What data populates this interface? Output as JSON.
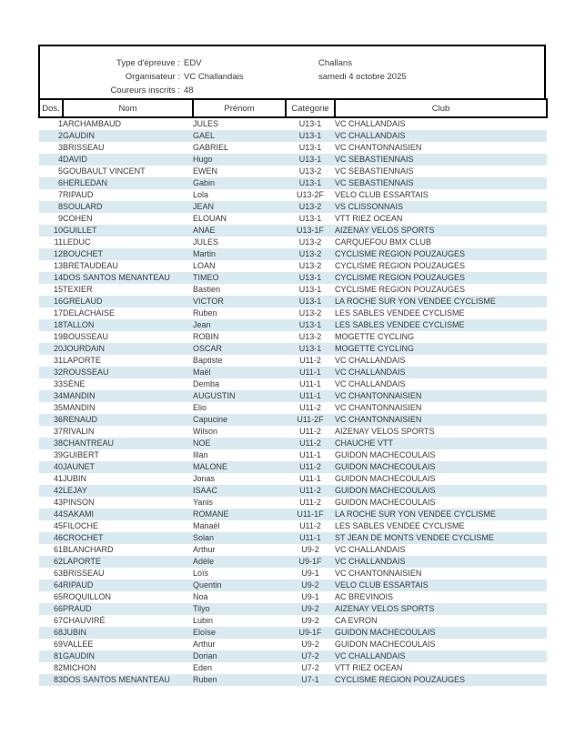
{
  "header": {
    "type_label": "Type d'épreuve :",
    "type_value": "EDV",
    "organizer_label": "Organisateur :",
    "organizer_value": "VC Challandais",
    "entries_label": "Coureurs inscrits :",
    "entries_value": "48",
    "location": "Challans",
    "date": "samedi 4 octobre 2025"
  },
  "table": {
    "columns": [
      "Dos.",
      "Nom",
      "Prénom",
      "Catégorie",
      "Club"
    ],
    "rows": [
      [
        "1",
        "ARCHAMBAUD",
        "JULES",
        "U13-1",
        "VC CHALLANDAIS"
      ],
      [
        "2",
        "GAUDIN",
        "GAEL",
        "U13-1",
        "VC CHALLANDAIS"
      ],
      [
        "3",
        "BRISSEAU",
        "GABRIEL",
        "U13-1",
        "VC CHANTONNAISIEN"
      ],
      [
        "4",
        "DAVID",
        "Hugo",
        "U13-1",
        "VC SEBASTIENNAIS"
      ],
      [
        "5",
        "GOUBAULT VINCENT",
        "EWEN",
        "U13-2",
        "VC SEBASTIENNAIS"
      ],
      [
        "6",
        "HERLEDAN",
        "Gabin",
        "U13-1",
        "VC SEBASTIENNAIS"
      ],
      [
        "7",
        "RIPAUD",
        "Lola",
        "U13-2F",
        "VELO CLUB ESSARTAIS"
      ],
      [
        "8",
        "SOULARD",
        "JEAN",
        "U13-2",
        "VS CLISSONNAIS"
      ],
      [
        "9",
        "COHEN",
        "ELOUAN",
        "U13-1",
        "VTT RIEZ OCEAN"
      ],
      [
        "10",
        "GUILLET",
        "ANAE",
        "U13-1F",
        "AIZENAY VELOS SPORTS"
      ],
      [
        "11",
        "LEDUC",
        "JULES",
        "U13-2",
        "CARQUEFOU BMX CLUB"
      ],
      [
        "12",
        "BOUCHET",
        "Martin",
        "U13-2",
        "CYCLISME REGION POUZAUGES"
      ],
      [
        "13",
        "BRETAUDEAU",
        "LOAN",
        "U13-2",
        "CYCLISME REGION POUZAUGES"
      ],
      [
        "14",
        "DOS SANTOS MENANTEAU",
        "TIMEO",
        "U13-1",
        "CYCLISME REGION POUZAUGES"
      ],
      [
        "15",
        "TEXIER",
        "Bastien",
        "U13-1",
        "CYCLISME REGION POUZAUGES"
      ],
      [
        "16",
        "GRELAUD",
        "VICTOR",
        "U13-1",
        "LA ROCHE SUR YON VENDEE CYCLISME"
      ],
      [
        "17",
        "DELACHAISE",
        "Ruben",
        "U13-2",
        "LES SABLES VENDEE CYCLISME"
      ],
      [
        "18",
        "TALLON",
        "Jean",
        "U13-1",
        "LES SABLES VENDEE CYCLISME"
      ],
      [
        "19",
        "BOUSSEAU",
        "ROBIN",
        "U13-2",
        "MOGETTE CYCLING"
      ],
      [
        "20",
        "JOURDAIN",
        "OSCAR",
        "U13-1",
        "MOGETTE CYCLING"
      ],
      [
        "31",
        "LAPORTE",
        "Baptiste",
        "U11-2",
        "VC CHALLANDAIS"
      ],
      [
        "32",
        "ROUSSEAU",
        "Maël",
        "U11-1",
        "VC CHALLANDAIS"
      ],
      [
        "33",
        "SÈNE",
        "Demba",
        "U11-1",
        "VC CHALLANDAIS"
      ],
      [
        "34",
        "MANDIN",
        "AUGUSTIN",
        "U11-1",
        "VC CHANTONNAISIEN"
      ],
      [
        "35",
        "MANDIN",
        "Elio",
        "U11-2",
        "VC CHANTONNAISIEN"
      ],
      [
        "36",
        "RENAUD",
        "Capucine",
        "U11-2F",
        "VC CHANTONNAISIEN"
      ],
      [
        "37",
        "RIVALIN",
        "Wilson",
        "U11-2",
        "AIZENAY VELOS SPORTS"
      ],
      [
        "38",
        "CHANTREAU",
        "NOE",
        "U11-2",
        "CHAUCHE VTT"
      ],
      [
        "39",
        "GUIBERT",
        "Illan",
        "U11-1",
        "GUIDON MACHECOULAIS"
      ],
      [
        "40",
        "JAUNET",
        "MALONE",
        "U11-2",
        "GUIDON MACHECOULAIS"
      ],
      [
        "41",
        "JUBIN",
        "Jonas",
        "U11-1",
        "GUIDON MACHECOULAIS"
      ],
      [
        "42",
        "LEJAY",
        "ISAAC",
        "U11-2",
        "GUIDON MACHECOULAIS"
      ],
      [
        "43",
        "PINSON",
        "Yanis",
        "U11-2",
        "GUIDON MACHECOULAIS"
      ],
      [
        "44",
        "SAKAMI",
        "ROMANE",
        "U11-1F",
        "LA ROCHE SUR YON VENDEE CYCLISME"
      ],
      [
        "45",
        "FILOCHE",
        "Manaël",
        "U11-2",
        "LES SABLES VENDEE CYCLISME"
      ],
      [
        "46",
        "CROCHET",
        "Solan",
        "U11-1",
        "ST JEAN DE MONTS VENDEE CYCLISME"
      ],
      [
        "61",
        "BLANCHARD",
        "Arthur",
        "U9-2",
        "VC CHALLANDAIS"
      ],
      [
        "62",
        "LAPORTE",
        "Adèle",
        "U9-1F",
        "VC CHALLANDAIS"
      ],
      [
        "63",
        "BRISSEAU",
        "Loïs",
        "U9-1",
        "VC CHANTONNAISIEN"
      ],
      [
        "64",
        "RIPAUD",
        "Quentin",
        "U9-2",
        "VELO CLUB ESSARTAIS"
      ],
      [
        "65",
        "ROQUILLON",
        "Noa",
        "U9-1",
        "AC BREVINOIS"
      ],
      [
        "66",
        "PRAUD",
        "Tilyo",
        "U9-2",
        "AIZENAY VELOS SPORTS"
      ],
      [
        "67",
        "CHAUVIRÉ",
        "Lubin",
        "U9-2",
        "CA EVRON"
      ],
      [
        "68",
        "JUBIN",
        "Eloïse",
        "U9-1F",
        "GUIDON MACHECOULAIS"
      ],
      [
        "69",
        "VALLEE",
        "Arthur",
        "U9-2",
        "GUIDON MACHECOULAIS"
      ],
      [
        "81",
        "GAUDIN",
        "Dorian",
        "U7-2",
        "VC CHALLANDAIS"
      ],
      [
        "82",
        "MICHON",
        "Eden",
        "U7-2",
        "VTT RIEZ OCEAN"
      ],
      [
        "83",
        "DOS SANTOS MENANTEAU",
        "Ruben",
        "U7-1",
        "CYCLISME REGION POUZAUGES"
      ]
    ]
  },
  "colors": {
    "row_alt": "#d9eaf1",
    "border": "#000000",
    "text": "#3a3a3a"
  }
}
